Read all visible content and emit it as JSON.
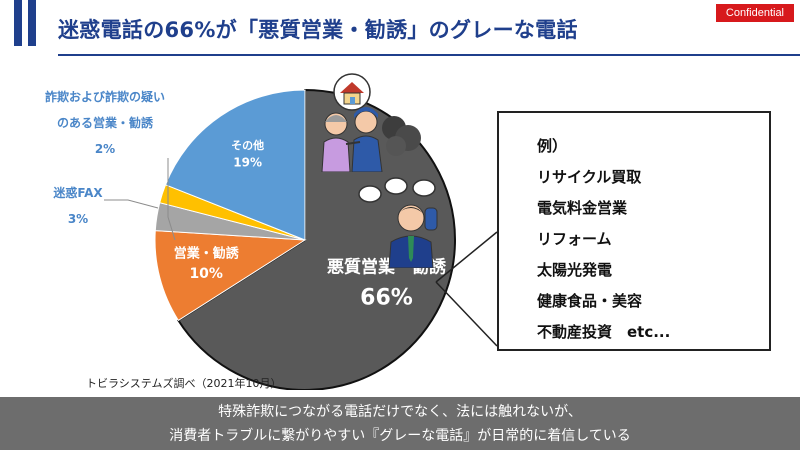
{
  "header": {
    "title": "迷惑電話の66%が「悪質営業・勧誘」のグレーな電話",
    "badge": "Confidential"
  },
  "chart_data": {
    "type": "pie",
    "title": "",
    "slices": [
      {
        "label": "悪質営業・勧誘",
        "value": 66,
        "value_label": "66%",
        "color": "#595959"
      },
      {
        "label": "営業・勧誘",
        "value": 10,
        "value_label": "10%",
        "color": "#ed7d31"
      },
      {
        "label": "迷惑FAX",
        "value": 3,
        "value_label": "3%",
        "color": "#a5a5a5"
      },
      {
        "label": "詐欺および詐欺の疑いのある営業・勧誘",
        "value": 2,
        "value_label": "2%",
        "color": "#ffc000"
      },
      {
        "label": "その他",
        "value": 19,
        "value_label": "19%",
        "color": "#5b9bd5"
      }
    ]
  },
  "labels": {
    "fraud_line1": "詐欺および詐欺の疑い",
    "fraud_line2": "のある営業・勧誘",
    "fraud_pct": "2%",
    "fax_name": "迷惑FAX",
    "fax_pct": "3%"
  },
  "examples": {
    "header": "例）",
    "items": [
      "リサイクル買取",
      "電気料金営業",
      "リフォーム",
      "太陽光発電",
      "健康食品・美容",
      "不動産投資　etc..."
    ]
  },
  "source": "トビラシステムズ調べ（2021年10月）",
  "footer": {
    "line1": "特殊詐欺につながる電話だけでなく、法には触れないが、",
    "line2": "消費者トラブルに繋がりやすい『グレーな電話』が日常的に着信している"
  }
}
